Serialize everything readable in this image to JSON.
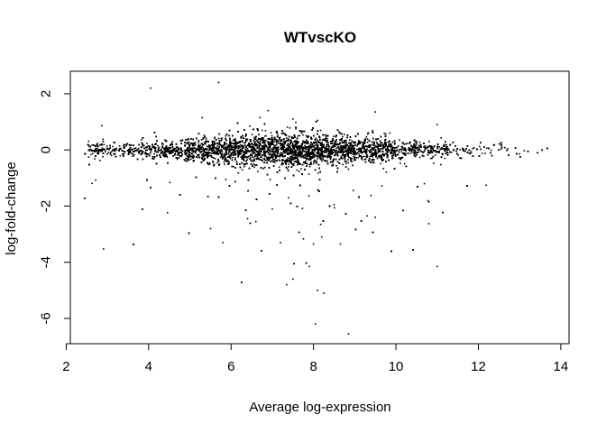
{
  "chart_data": {
    "type": "scatter",
    "title": "WTvscKO",
    "xlabel": "Average log-expression",
    "ylabel": "log-fold-change",
    "xlim": [
      2.1,
      14.2
    ],
    "ylim": [
      -6.9,
      2.8
    ],
    "xticks": [
      2,
      4,
      6,
      8,
      10,
      12,
      14
    ],
    "yticks": [
      2,
      0,
      -2,
      -4,
      -6
    ],
    "grid": false,
    "point_color": "#000000",
    "highlighted_points": [
      {
        "x": 4.05,
        "y": 2.2
      },
      {
        "x": 5.7,
        "y": 2.4
      },
      {
        "x": 6.9,
        "y": 1.4
      },
      {
        "x": 9.5,
        "y": 1.35
      },
      {
        "x": 5.3,
        "y": 1.15
      },
      {
        "x": 6.7,
        "y": 1.15
      },
      {
        "x": 8.1,
        "y": 1.05
      },
      {
        "x": 7.5,
        "y": 1.1
      },
      {
        "x": 11.0,
        "y": 0.9
      },
      {
        "x": 5.8,
        "y": -3.3
      },
      {
        "x": 7.2,
        "y": -3.3
      },
      {
        "x": 8.0,
        "y": -3.35
      },
      {
        "x": 8.2,
        "y": -3.1
      },
      {
        "x": 8.65,
        "y": -3.35
      },
      {
        "x": 7.9,
        "y": -4.15
      },
      {
        "x": 7.5,
        "y": -4.6
      },
      {
        "x": 7.35,
        "y": -4.8
      },
      {
        "x": 8.1,
        "y": -5.0
      },
      {
        "x": 8.25,
        "y": -5.1
      },
      {
        "x": 11.0,
        "y": -4.15
      },
      {
        "x": 8.05,
        "y": -6.2
      },
      {
        "x": 8.85,
        "y": -6.55
      },
      {
        "x": 9.5,
        "y": -2.4
      },
      {
        "x": 9.3,
        "y": -2.35
      },
      {
        "x": 6.4,
        "y": -2.45
      },
      {
        "x": 6.6,
        "y": -2.55
      },
      {
        "x": 5.5,
        "y": -2.8
      },
      {
        "x": 7.0,
        "y": -2.1
      },
      {
        "x": 8.5,
        "y": -1.95
      },
      {
        "x": 10.8,
        "y": -1.85
      }
    ]
  }
}
